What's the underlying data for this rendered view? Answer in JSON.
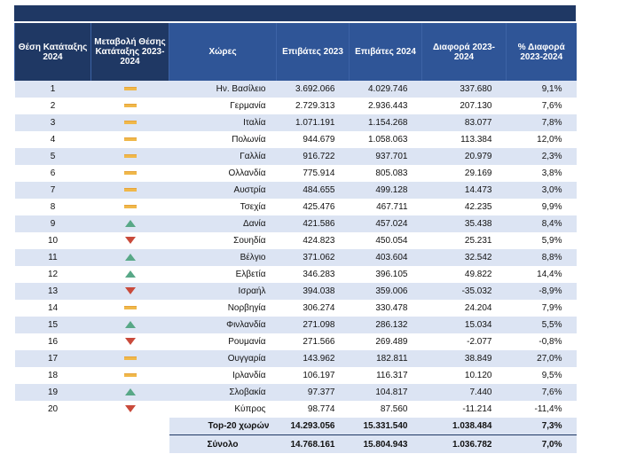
{
  "headers": {
    "rank": "Θέση Κατάταξης 2024",
    "change": "Μεταβολή Θέσης Κατάταξης 2023-2024",
    "country": "Χώρες",
    "p2023": "Επιβάτες 2023",
    "p2024": "Επιβάτες 2024",
    "diff": "Διαφορά 2023-2024",
    "pct": "% Διαφορά 2023-2024"
  },
  "rows": [
    {
      "rank": "1",
      "change": "same",
      "country": "Ην. Βασίλειο",
      "p2023": "3.692.066",
      "p2024": "4.029.746",
      "diff": "337.680",
      "pct": "9,1%"
    },
    {
      "rank": "2",
      "change": "same",
      "country": "Γερμανία",
      "p2023": "2.729.313",
      "p2024": "2.936.443",
      "diff": "207.130",
      "pct": "7,6%"
    },
    {
      "rank": "3",
      "change": "same",
      "country": "Ιταλία",
      "p2023": "1.071.191",
      "p2024": "1.154.268",
      "diff": "83.077",
      "pct": "7,8%"
    },
    {
      "rank": "4",
      "change": "same",
      "country": "Πολωνία",
      "p2023": "944.679",
      "p2024": "1.058.063",
      "diff": "113.384",
      "pct": "12,0%"
    },
    {
      "rank": "5",
      "change": "same",
      "country": "Γαλλία",
      "p2023": "916.722",
      "p2024": "937.701",
      "diff": "20.979",
      "pct": "2,3%"
    },
    {
      "rank": "6",
      "change": "same",
      "country": "Ολλανδία",
      "p2023": "775.914",
      "p2024": "805.083",
      "diff": "29.169",
      "pct": "3,8%"
    },
    {
      "rank": "7",
      "change": "same",
      "country": "Αυστρία",
      "p2023": "484.655",
      "p2024": "499.128",
      "diff": "14.473",
      "pct": "3,0%"
    },
    {
      "rank": "8",
      "change": "same",
      "country": "Τσεχία",
      "p2023": "425.476",
      "p2024": "467.711",
      "diff": "42.235",
      "pct": "9,9%"
    },
    {
      "rank": "9",
      "change": "up",
      "country": "Δανία",
      "p2023": "421.586",
      "p2024": "457.024",
      "diff": "35.438",
      "pct": "8,4%"
    },
    {
      "rank": "10",
      "change": "down",
      "country": "Σουηδία",
      "p2023": "424.823",
      "p2024": "450.054",
      "diff": "25.231",
      "pct": "5,9%"
    },
    {
      "rank": "11",
      "change": "up",
      "country": "Βέλγιο",
      "p2023": "371.062",
      "p2024": "403.604",
      "diff": "32.542",
      "pct": "8,8%"
    },
    {
      "rank": "12",
      "change": "up",
      "country": "Ελβετία",
      "p2023": "346.283",
      "p2024": "396.105",
      "diff": "49.822",
      "pct": "14,4%"
    },
    {
      "rank": "13",
      "change": "down",
      "country": "Ισραήλ",
      "p2023": "394.038",
      "p2024": "359.006",
      "diff": "-35.032",
      "pct": "-8,9%"
    },
    {
      "rank": "14",
      "change": "same",
      "country": "Νορβηγία",
      "p2023": "306.274",
      "p2024": "330.478",
      "diff": "24.204",
      "pct": "7,9%"
    },
    {
      "rank": "15",
      "change": "up",
      "country": "Φινλανδία",
      "p2023": "271.098",
      "p2024": "286.132",
      "diff": "15.034",
      "pct": "5,5%"
    },
    {
      "rank": "16",
      "change": "down",
      "country": "Ρουμανία",
      "p2023": "271.566",
      "p2024": "269.489",
      "diff": "-2.077",
      "pct": "-0,8%"
    },
    {
      "rank": "17",
      "change": "same",
      "country": "Ουγγαρία",
      "p2023": "143.962",
      "p2024": "182.811",
      "diff": "38.849",
      "pct": "27,0%"
    },
    {
      "rank": "18",
      "change": "same",
      "country": "Ιρλανδία",
      "p2023": "106.197",
      "p2024": "116.317",
      "diff": "10.120",
      "pct": "9,5%"
    },
    {
      "rank": "19",
      "change": "up",
      "country": "Σλοβακία",
      "p2023": "97.377",
      "p2024": "104.817",
      "diff": "7.440",
      "pct": "7,6%"
    },
    {
      "rank": "20",
      "change": "down",
      "country": "Κύπρος",
      "p2023": "98.774",
      "p2024": "87.560",
      "diff": "-11.214",
      "pct": "-11,4%"
    }
  ],
  "top20": {
    "label": "Top-20 χωρών",
    "p2023": "14.293.056",
    "p2024": "15.331.540",
    "diff": "1.038.484",
    "pct": "7,3%"
  },
  "total": {
    "label": "Σύνολο",
    "p2023": "14.768.161",
    "p2024": "15.804.943",
    "diff": "1.036.782",
    "pct": "7,0%"
  },
  "colors": {
    "header_dark": "#1f3864",
    "header": "#2f5597",
    "stripe": "#dce4f3",
    "up": "#58a887",
    "down": "#c94a3b",
    "same": "#f0b84a"
  },
  "icons": {
    "same": "dash-icon",
    "up": "up-triangle-icon",
    "down": "down-triangle-icon"
  }
}
